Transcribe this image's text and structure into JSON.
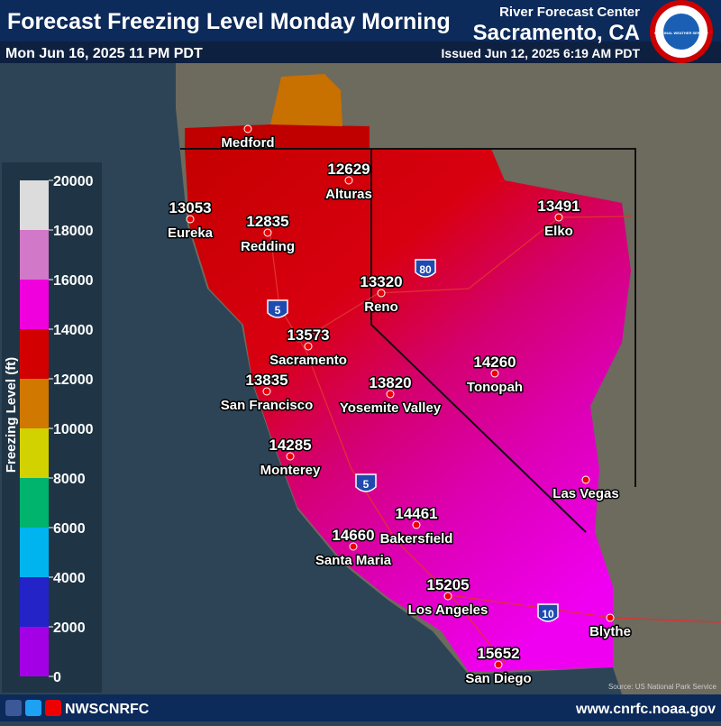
{
  "header": {
    "title": "Forecast Freezing Level Monday Morning",
    "subtitle": "Mon Jun 16, 2025 11 PM PDT",
    "agency": "River Forecast Center",
    "office": "Sacramento, CA",
    "issued": "Issued Jun 12, 2025 6:19 AM PDT",
    "logo_text": "NATIONAL WEATHER SERVICE"
  },
  "legend": {
    "label": "Freezing Level (ft)",
    "ticks": [
      0,
      2000,
      4000,
      6000,
      8000,
      10000,
      12000,
      14000,
      16000,
      18000,
      20000
    ],
    "colors": [
      "#a400e6",
      "#2323c8",
      "#00b4f0",
      "#00b46e",
      "#d2d200",
      "#d07800",
      "#d20000",
      "#f000dc",
      "#d278c8",
      "#dcdcdc"
    ]
  },
  "stations": [
    {
      "name": "Medford"
    },
    {
      "name": "Alturas",
      "value": 12629
    },
    {
      "name": "Eureka",
      "value": 13053
    },
    {
      "name": "Redding",
      "value": 12835
    },
    {
      "name": "Elko",
      "value": 13491
    },
    {
      "name": "Reno",
      "value": 13320
    },
    {
      "name": "Sacramento",
      "value": 13573
    },
    {
      "name": "San Francisco",
      "value": 13835
    },
    {
      "name": "Yosemite Valley",
      "value": 13820
    },
    {
      "name": "Tonopah",
      "value": 14260
    },
    {
      "name": "Monterey",
      "value": 14285
    },
    {
      "name": "Las Vegas"
    },
    {
      "name": "Bakersfield",
      "value": 14461
    },
    {
      "name": "Santa Maria",
      "value": 14660
    },
    {
      "name": "Los Angeles",
      "value": 15205
    },
    {
      "name": "Blythe"
    },
    {
      "name": "San Diego",
      "value": 15652
    }
  ],
  "highways": [
    "5",
    "80",
    "5",
    "10"
  ],
  "source": "Source: US National Park Service",
  "footer": {
    "social": "NWSCNRFC",
    "url": "www.cnrfc.noaa.gov"
  }
}
